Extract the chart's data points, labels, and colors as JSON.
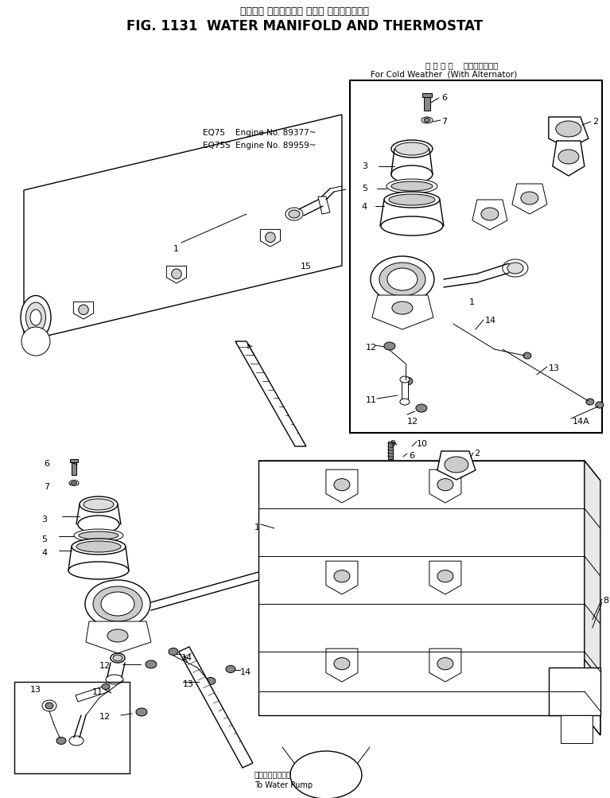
{
  "title_japanese": "ウォータ マニホールド および サーモスタット",
  "title_english": "FIG. 1131  WATER MANIFOLD AND THERMOSTAT",
  "bg_color": "#ffffff",
  "fig_width": 7.67,
  "fig_height": 10.04,
  "dpi": 100,
  "inset_label_jp": "寒 冷 仕 様    オルタネータ付",
  "inset_label_en": "For Cold Weather  (With Alternator)",
  "engine_text_line1": "EQ75    Engine No. 89377~",
  "engine_text_line2": "EQ75S  Engine No. 89959~",
  "bottom_text_jp": "ウォータポンプへ",
  "bottom_text_en": "To Water Pump",
  "line_color": "#000000"
}
